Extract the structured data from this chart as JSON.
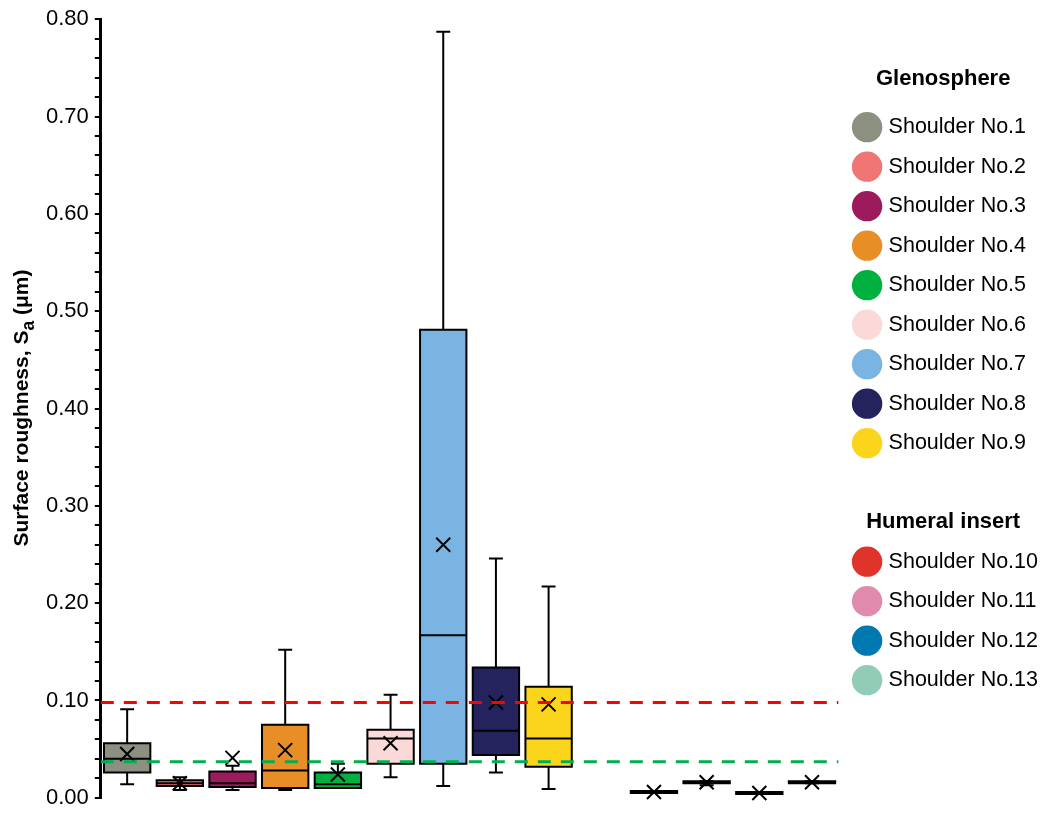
{
  "chart_data": {
    "type": "box",
    "ylabel": "Surface roughness, S$_{a}$ (μm)",
    "legend_title": "Glenosphere",
    "annotations": [
      "Humeral insert"
    ],
    "categories": [
      null,
      null,
      null,
      null,
      null,
      null,
      null,
      null,
      null,
      null,
      null,
      null,
      null,
      null
    ],
    "ylim": [
      0,
      0.8
    ],
    "yticks": [
      {
        "value": 0,
        "label": "0.00"
      },
      {
        "value": 0.02,
        "label": null
      },
      {
        "value": 0.04,
        "label": null
      },
      {
        "value": 0.06,
        "label": null
      },
      {
        "value": 0.08,
        "label": null
      },
      {
        "value": 0.1,
        "label": "0.10"
      },
      {
        "value": 0.12,
        "label": null
      },
      {
        "value": 0.14,
        "label": null
      },
      {
        "value": 0.16,
        "label": null
      },
      {
        "value": 0.18,
        "label": null
      },
      {
        "value": 0.2,
        "label": "0.20"
      },
      {
        "value": 0.22,
        "label": null
      },
      {
        "value": 0.24,
        "label": null
      },
      {
        "value": 0.26,
        "label": null
      },
      {
        "value": 0.28,
        "label": null
      },
      {
        "value": 0.3,
        "label": "0.30"
      },
      {
        "value": 0.32,
        "label": null
      },
      {
        "value": 0.34,
        "label": null
      },
      {
        "value": 0.36,
        "label": null
      },
      {
        "value": 0.38,
        "label": null
      },
      {
        "value": 0.4,
        "label": "0.40"
      },
      {
        "value": 0.42,
        "label": null
      },
      {
        "value": 0.44,
        "label": null
      },
      {
        "value": 0.46,
        "label": null
      },
      {
        "value": 0.48,
        "label": null
      },
      {
        "value": 0.5,
        "label": "0.50"
      },
      {
        "value": 0.52,
        "label": null
      },
      {
        "value": 0.54,
        "label": null
      },
      {
        "value": 0.56,
        "label": null
      },
      {
        "value": 0.58,
        "label": null
      },
      {
        "value": 0.6,
        "label": "0.60"
      },
      {
        "value": 0.62,
        "label": null
      },
      {
        "value": 0.64,
        "label": null
      },
      {
        "value": 0.66,
        "label": null
      },
      {
        "value": 0.68,
        "label": null
      },
      {
        "value": 0.7,
        "label": "0.70"
      },
      {
        "value": 0.72,
        "label": null
      },
      {
        "value": 0.74,
        "label": null
      },
      {
        "value": 0.76,
        "label": null
      },
      {
        "value": 0.78,
        "label": null
      },
      {
        "value": 0.8,
        "label": "0.80"
      }
    ],
    "tick_labels": "y",
    "grid": false,
    "legend": "right",
    "marker": "cross",
    "ref_lines": [
      {
        "axis": "y",
        "value": 0.098,
        "color": "#ff0000",
        "line_style": "dashed"
      },
      {
        "axis": "y",
        "value": 0.037,
        "color": "#00b050",
        "line_style": "dashed"
      }
    ],
    "series": [
      {
        "name": "Shoulder No.1",
        "color": "#8c9080",
        "boxes": [
          {
            "low": 0.014,
            "q1": 0.026,
            "median": 0.04,
            "q3": 0.056,
            "high": 0.091,
            "mean": 0.045
          },
          null,
          null,
          null,
          null,
          null,
          null,
          null,
          null,
          null,
          null,
          null,
          null,
          null
        ]
      },
      {
        "name": "Shoulder No.2",
        "color": "#f07575",
        "boxes": [
          null,
          {
            "low": 0.008,
            "q1": 0.012,
            "median": 0.015,
            "q3": 0.018,
            "high": 0.021,
            "mean": 0.015
          },
          null,
          null,
          null,
          null,
          null,
          null,
          null,
          null,
          null,
          null,
          null,
          null
        ]
      },
      {
        "name": "Shoulder No.3",
        "color": "#9b1b5d",
        "boxes": [
          null,
          null,
          {
            "low": 0.008,
            "q1": 0.011,
            "median": 0.015,
            "q3": 0.027,
            "high": 0.033,
            "mean": 0.041
          },
          null,
          null,
          null,
          null,
          null,
          null,
          null,
          null,
          null,
          null,
          null
        ]
      },
      {
        "name": "Shoulder No.4",
        "color": "#e88e26",
        "boxes": [
          null,
          null,
          null,
          {
            "low": 0.008,
            "q1": 0.01,
            "median": 0.028,
            "q3": 0.075,
            "high": 0.152,
            "mean": 0.049
          },
          null,
          null,
          null,
          null,
          null,
          null,
          null,
          null,
          null,
          null
        ]
      },
      {
        "name": "Shoulder No.5",
        "color": "#00b140",
        "boxes": [
          null,
          null,
          null,
          null,
          {
            "low": 0.01,
            "q1": 0.01,
            "median": 0.014,
            "q3": 0.026,
            "high": 0.035,
            "mean": 0.024
          },
          null,
          null,
          null,
          null,
          null,
          null,
          null,
          null,
          null
        ]
      },
      {
        "name": "Shoulder No.6",
        "color": "#fcd9d9",
        "boxes": [
          null,
          null,
          null,
          null,
          null,
          {
            "low": 0.021,
            "q1": 0.035,
            "median": 0.061,
            "q3": 0.07,
            "high": 0.106,
            "mean": 0.056
          },
          null,
          null,
          null,
          null,
          null,
          null,
          null,
          null
        ]
      },
      {
        "name": "Shoulder No.7",
        "color": "#7ab4e3",
        "boxes": [
          null,
          null,
          null,
          null,
          null,
          null,
          {
            "low": 0.012,
            "q1": 0.035,
            "median": 0.167,
            "q3": 0.481,
            "high": 0.787,
            "mean": 0.26
          },
          null,
          null,
          null,
          null,
          null,
          null,
          null
        ]
      },
      {
        "name": "Shoulder No.8",
        "color": "#24235e",
        "boxes": [
          null,
          null,
          null,
          null,
          null,
          null,
          null,
          {
            "low": 0.026,
            "q1": 0.044,
            "median": 0.069,
            "q3": 0.134,
            "high": 0.246,
            "mean": 0.098
          },
          null,
          null,
          null,
          null,
          null,
          null
        ]
      },
      {
        "name": "Shoulder No.9",
        "color": "#fad51c",
        "boxes": [
          null,
          null,
          null,
          null,
          null,
          null,
          null,
          null,
          {
            "low": 0.009,
            "q1": 0.032,
            "median": 0.061,
            "q3": 0.114,
            "high": 0.217,
            "mean": 0.096
          },
          null,
          null,
          null,
          null,
          null
        ]
      },
      {
        "name": "Shoulder No.10",
        "color": "#e0342a",
        "boxes": [
          null,
          null,
          null,
          null,
          null,
          null,
          null,
          null,
          null,
          null,
          {
            "low": 0.005,
            "q1": 0.005,
            "median": 0.006,
            "q3": 0.007,
            "high": 0.007,
            "mean": 0.006
          },
          null,
          null,
          null
        ]
      },
      {
        "name": "Shoulder No.11",
        "color": "#e08aae",
        "boxes": [
          null,
          null,
          null,
          null,
          null,
          null,
          null,
          null,
          null,
          null,
          null,
          {
            "low": 0.013,
            "q1": 0.015,
            "median": 0.016,
            "q3": 0.017,
            "high": 0.017,
            "mean": 0.016
          },
          null,
          null
        ]
      },
      {
        "name": "Shoulder No.12",
        "color": "#0078b0",
        "boxes": [
          null,
          null,
          null,
          null,
          null,
          null,
          null,
          null,
          null,
          null,
          null,
          null,
          {
            "low": 0.004,
            "q1": 0.004,
            "median": 0.005,
            "q3": 0.006,
            "high": 0.006,
            "mean": 0.005
          },
          null
        ]
      },
      {
        "name": "Shoulder No.13",
        "color": "#93ccb6",
        "boxes": [
          null,
          null,
          null,
          null,
          null,
          null,
          null,
          null,
          null,
          null,
          null,
          null,
          null,
          {
            "low": 0.015,
            "q1": 0.015,
            "median": 0.016,
            "q3": 0.017,
            "high": 0.017,
            "mean": 0.016
          }
        ]
      }
    ]
  }
}
